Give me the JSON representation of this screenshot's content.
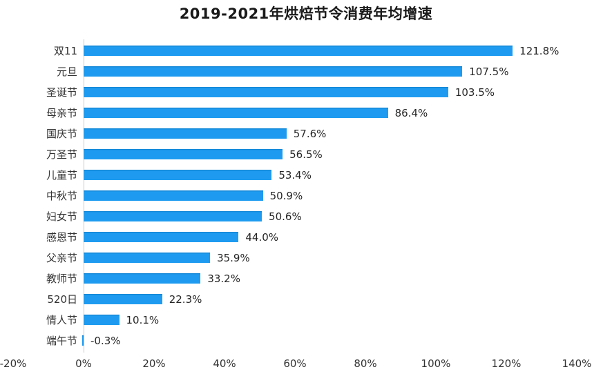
{
  "chart_data": {
    "type": "bar",
    "orientation": "horizontal",
    "title": "2019-2021年烘焙节令消费年均增速",
    "categories": [
      "双11",
      "元旦",
      "圣诞节",
      "母亲节",
      "国庆节",
      "万圣节",
      "儿童节",
      "中秋节",
      "妇女节",
      "感恩节",
      "父亲节",
      "教师节",
      "520日",
      "情人节",
      "端午节"
    ],
    "values": [
      121.8,
      107.5,
      103.5,
      86.4,
      57.6,
      56.5,
      53.4,
      50.9,
      50.6,
      44.0,
      35.9,
      33.2,
      22.3,
      10.1,
      -0.3
    ],
    "value_labels": [
      "121.8%",
      "107.5%",
      "103.5%",
      "86.4%",
      "57.6%",
      "56.5%",
      "53.4%",
      "50.9%",
      "50.6%",
      "44.0%",
      "35.9%",
      "33.2%",
      "22.3%",
      "10.1%",
      "-0.3%"
    ],
    "x_tick_labels": [
      "-20%",
      "0%",
      "20%",
      "40%",
      "60%",
      "80%",
      "100%",
      "120%",
      "140%"
    ],
    "x_tick_values": [
      -20,
      0,
      20,
      40,
      60,
      80,
      100,
      120,
      140
    ],
    "xlim": [
      -20,
      140
    ],
    "xlabel": "",
    "ylabel": "",
    "grid": false,
    "legend": null,
    "bar_color": "#1E9BF0",
    "axis_line_color": "#C9C9C9",
    "background_color": "#FFFFFF"
  }
}
